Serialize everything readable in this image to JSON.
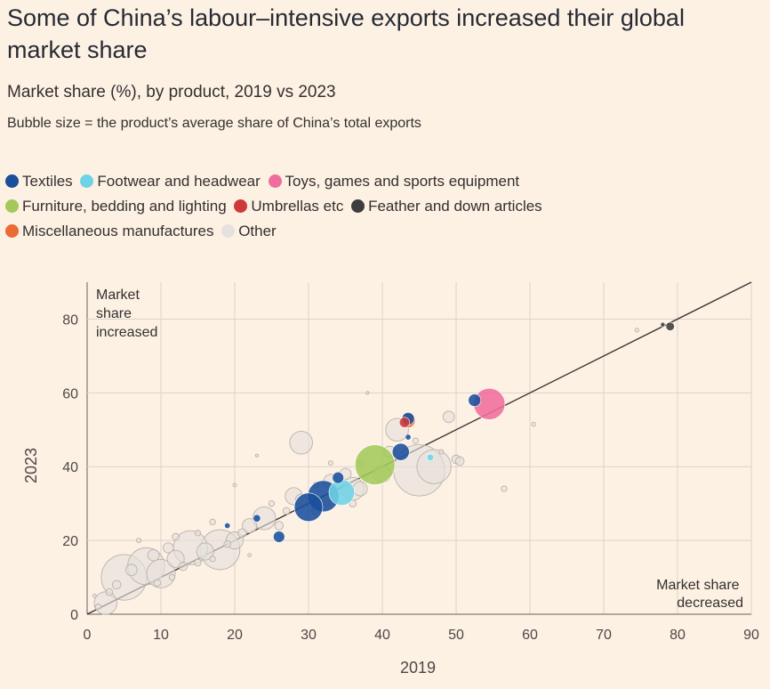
{
  "title": "Some of China’s labour–intensive exports increased their global market share",
  "subtitle": "Market share (%), by product, 2019 vs 2023",
  "note": "Bubble size = the product’s average share of China’s total exports",
  "legend": [
    {
      "label": "Textiles",
      "color": "#1a4f9c"
    },
    {
      "label": "Footwear and headwear",
      "color": "#6fd3e6"
    },
    {
      "label": "Toys, games and sports equipment",
      "color": "#f06d9c"
    },
    {
      "label": "Furniture, bedding and lighting",
      "color": "#a3c95a"
    },
    {
      "label": "Umbrellas etc",
      "color": "#cc3a3a"
    },
    {
      "label": "Feather and down articles",
      "color": "#3d3d3d"
    },
    {
      "label": "Miscellaneous manufactures",
      "color": "#ea6b34"
    },
    {
      "label": "Other",
      "color": "#e6e1dc"
    }
  ],
  "chart_data": {
    "type": "scatter",
    "title": "Some of China’s labour–intensive exports increased their global market share",
    "subtitle": "Market share (%), by product, 2019 vs 2023",
    "xlabel": "2019",
    "ylabel": "2023",
    "xlim": [
      0,
      90
    ],
    "ylim": [
      0,
      90
    ],
    "xticks": [
      0,
      10,
      20,
      30,
      40,
      50,
      60,
      70,
      80,
      90
    ],
    "yticks": [
      0,
      20,
      40,
      60,
      80
    ],
    "grid": true,
    "reference_line": "y = x",
    "annotations": [
      {
        "text": "Market share increased",
        "position": "top-left"
      },
      {
        "text": "Market share decreased",
        "position": "bottom-right"
      }
    ],
    "series": [
      {
        "name": "Textiles",
        "color": "#1a4f9c",
        "points": [
          {
            "x": 30,
            "y": 29,
            "size": 5
          },
          {
            "x": 32,
            "y": 32,
            "size": 5.5
          },
          {
            "x": 34,
            "y": 37,
            "size": 2
          },
          {
            "x": 42.5,
            "y": 44,
            "size": 3
          },
          {
            "x": 43.5,
            "y": 53,
            "size": 2.2
          },
          {
            "x": 52.5,
            "y": 58,
            "size": 2.2
          },
          {
            "x": 26,
            "y": 21,
            "size": 2
          },
          {
            "x": 23,
            "y": 26,
            "size": 1.3
          },
          {
            "x": 43.5,
            "y": 48,
            "size": 1
          },
          {
            "x": 19,
            "y": 24,
            "size": 1
          }
        ]
      },
      {
        "name": "Footwear and headwear",
        "color": "#6fd3e6",
        "points": [
          {
            "x": 34.5,
            "y": 33,
            "size": 4.5
          },
          {
            "x": 46.5,
            "y": 42.5,
            "size": 1.2
          }
        ]
      },
      {
        "name": "Toys, games and sports equipment",
        "color": "#f06d9c",
        "points": [
          {
            "x": 54.5,
            "y": 57,
            "size": 5.5
          }
        ]
      },
      {
        "name": "Furniture, bedding and lighting",
        "color": "#a3c95a",
        "points": [
          {
            "x": 39,
            "y": 40.5,
            "size": 7
          }
        ]
      },
      {
        "name": "Umbrellas etc",
        "color": "#cc3a3a",
        "points": [
          {
            "x": 43,
            "y": 52,
            "size": 1.8
          }
        ]
      },
      {
        "name": "Feather and down articles",
        "color": "#3d3d3d",
        "points": [
          {
            "x": 79,
            "y": 78,
            "size": 1.5
          },
          {
            "x": 78,
            "y": 78.5,
            "size": 0.8
          }
        ]
      },
      {
        "name": "Miscellaneous manufactures",
        "color": "#ea6b34",
        "points": [
          {
            "x": 43.5,
            "y": 52.5,
            "size": 2.5
          }
        ]
      },
      {
        "name": "Other",
        "color": "#e6e1dc",
        "points": [
          {
            "x": 45,
            "y": 39,
            "size": 9
          },
          {
            "x": 47,
            "y": 40,
            "size": 6
          },
          {
            "x": 18,
            "y": 17.5,
            "size": 7
          },
          {
            "x": 14,
            "y": 18,
            "size": 6
          },
          {
            "x": 8,
            "y": 13,
            "size": 6.5
          },
          {
            "x": 5,
            "y": 10,
            "size": 8
          },
          {
            "x": 2.5,
            "y": 3,
            "size": 4
          },
          {
            "x": 10,
            "y": 11,
            "size": 5
          },
          {
            "x": 12,
            "y": 15,
            "size": 3
          },
          {
            "x": 16,
            "y": 17,
            "size": 3
          },
          {
            "x": 20,
            "y": 20,
            "size": 3
          },
          {
            "x": 24,
            "y": 26,
            "size": 4
          },
          {
            "x": 22,
            "y": 24,
            "size": 2.5
          },
          {
            "x": 28,
            "y": 32,
            "size": 3
          },
          {
            "x": 36,
            "y": 34,
            "size": 4
          },
          {
            "x": 33,
            "y": 36,
            "size": 2.5
          },
          {
            "x": 37,
            "y": 34,
            "size": 2.5
          },
          {
            "x": 29,
            "y": 31,
            "size": 2
          },
          {
            "x": 35,
            "y": 38,
            "size": 2
          },
          {
            "x": 40,
            "y": 38,
            "size": 3
          },
          {
            "x": 42,
            "y": 50,
            "size": 4
          },
          {
            "x": 29,
            "y": 46.5,
            "size": 4
          },
          {
            "x": 41,
            "y": 44,
            "size": 2
          },
          {
            "x": 49,
            "y": 53.5,
            "size": 2
          },
          {
            "x": 50,
            "y": 42,
            "size": 1.5
          },
          {
            "x": 56.5,
            "y": 34,
            "size": 1
          },
          {
            "x": 60.5,
            "y": 51.5,
            "size": 0.7
          },
          {
            "x": 74.5,
            "y": 77,
            "size": 0.7
          },
          {
            "x": 38,
            "y": 60,
            "size": 0.5
          },
          {
            "x": 20,
            "y": 35,
            "size": 0.6
          },
          {
            "x": 22,
            "y": 16,
            "size": 0.6
          },
          {
            "x": 23,
            "y": 43,
            "size": 0.5
          },
          {
            "x": 15,
            "y": 22,
            "size": 1
          },
          {
            "x": 17,
            "y": 25,
            "size": 1
          },
          {
            "x": 12,
            "y": 21,
            "size": 1.2
          },
          {
            "x": 11,
            "y": 18,
            "size": 1.8
          },
          {
            "x": 9,
            "y": 16,
            "size": 2
          },
          {
            "x": 6,
            "y": 12,
            "size": 2
          },
          {
            "x": 7,
            "y": 20,
            "size": 0.8
          },
          {
            "x": 4,
            "y": 8,
            "size": 1.5
          },
          {
            "x": 3,
            "y": 6,
            "size": 1.2
          },
          {
            "x": 1.5,
            "y": 2,
            "size": 1
          },
          {
            "x": 1,
            "y": 5,
            "size": 0.6
          },
          {
            "x": 26,
            "y": 24,
            "size": 1.5
          },
          {
            "x": 27,
            "y": 28,
            "size": 1.2
          },
          {
            "x": 31,
            "y": 28,
            "size": 1.5
          },
          {
            "x": 32.5,
            "y": 30,
            "size": 1.2
          },
          {
            "x": 25,
            "y": 30,
            "size": 1
          },
          {
            "x": 21,
            "y": 22,
            "size": 1.5
          },
          {
            "x": 19,
            "y": 19,
            "size": 1.2
          },
          {
            "x": 13,
            "y": 13,
            "size": 1.5
          },
          {
            "x": 15,
            "y": 14,
            "size": 1.2
          },
          {
            "x": 17,
            "y": 15,
            "size": 1
          },
          {
            "x": 9.5,
            "y": 8.5,
            "size": 1.2
          },
          {
            "x": 11.5,
            "y": 10,
            "size": 1
          },
          {
            "x": 33,
            "y": 41,
            "size": 0.8
          },
          {
            "x": 31,
            "y": 35,
            "size": 1
          },
          {
            "x": 37,
            "y": 41,
            "size": 0.8
          },
          {
            "x": 44.5,
            "y": 47,
            "size": 1
          },
          {
            "x": 48,
            "y": 44,
            "size": 0.8
          },
          {
            "x": 50.5,
            "y": 41.5,
            "size": 1.5
          },
          {
            "x": 36,
            "y": 30,
            "size": 1.2
          }
        ]
      }
    ]
  }
}
